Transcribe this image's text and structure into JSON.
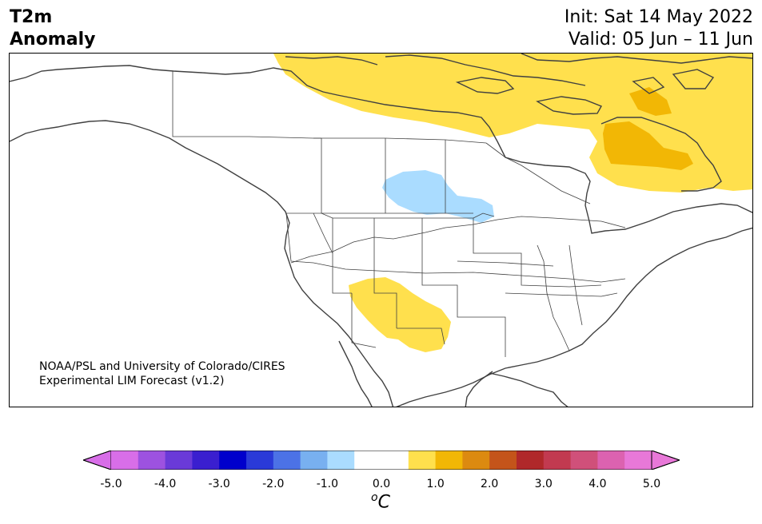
{
  "header": {
    "title_line1": "T2m",
    "title_line2": "Anomaly",
    "init": "Init: Sat 14 May 2022",
    "valid": "Valid: 05 Jun – 11 Jun"
  },
  "map": {
    "region": "North America",
    "credit_line1": "NOAA/PSL and University of Colorado/CIRES",
    "credit_line2": "Experimental LIM Forecast (v1.2)",
    "anomaly_regions": [
      {
        "name": "northern-canada-warm",
        "level": 1.0,
        "color": "#ffe04d"
      },
      {
        "name": "hudson-quebec-warm",
        "level": 1.5,
        "color": "#f2b705"
      },
      {
        "name": "canadian-prairies-cool",
        "level": -1.0,
        "color": "#a8d8ff"
      },
      {
        "name": "southwest-us-warm",
        "level": 1.0,
        "color": "#ffe04d"
      }
    ]
  },
  "colorbar": {
    "units_base": "C",
    "units_sup": "o",
    "ticks": [
      "-5.0",
      "-4.0",
      "-3.0",
      "-2.0",
      "-1.0",
      "0.0",
      "1.0",
      "2.0",
      "3.0",
      "4.0",
      "5.0"
    ],
    "colors": [
      "#d86ee8",
      "#9d52e0",
      "#6a3ad8",
      "#3a1fcf",
      "#0000cc",
      "#2a3ad8",
      "#4c72e6",
      "#78b0f0",
      "#aadcff",
      "#ffffff",
      "#ffffff",
      "#ffe04d",
      "#f2b705",
      "#dc8a10",
      "#c4541a",
      "#b0282a",
      "#c23a50",
      "#d0507a",
      "#dc62b0",
      "#e878d8"
    ],
    "min_color": "#d86ee8",
    "max_color": "#e878d8"
  }
}
